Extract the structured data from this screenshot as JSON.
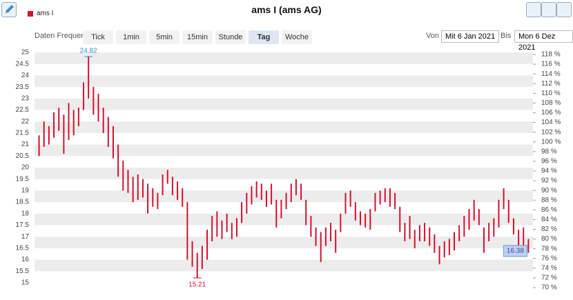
{
  "toolbar": {
    "frequency_label": "Daten Frequenz",
    "buttons": [
      "Tick",
      "1min",
      "5min",
      "15min",
      "Stunde",
      "Tag",
      "Woche"
    ],
    "from_label": "Von",
    "from_date": "Mit 6 Jan 2021",
    "to_label": "Bis",
    "to_date": "Mon 6 Dez 2021"
  },
  "chart_data": {
    "type": "ohlc",
    "title": "ams I (ams AG)",
    "series": [
      {
        "name": "ams I",
        "color": "#d40f2d",
        "high": [
          21.4,
          22.0,
          21.8,
          22.4,
          22.6,
          22.3,
          22.8,
          22.5,
          22.6,
          23.7,
          24.82,
          23.5,
          23.2,
          22.6,
          22.2,
          21.8,
          21.0,
          20.3,
          19.9,
          19.6,
          19.7,
          19.5,
          19.3,
          19.1,
          18.9,
          19.7,
          19.9,
          19.6,
          19.4,
          19.1,
          18.5,
          16.8,
          16.3,
          16.6,
          17.3,
          17.9,
          18.1,
          17.7,
          18.0,
          17.6,
          17.8,
          18.5,
          18.9,
          19.2,
          19.4,
          19.3,
          19.0,
          19.3,
          18.6,
          18.6,
          18.9,
          19.3,
          19.5,
          19.3,
          18.6,
          17.9,
          17.4,
          17.2,
          17.4,
          17.6,
          17.3,
          18.0,
          18.9,
          19.0,
          18.5,
          18.1,
          18.0,
          18.2,
          18.9,
          19.0,
          19.1,
          19.1,
          18.9,
          18.3,
          17.6,
          17.9,
          17.3,
          17.5,
          17.6,
          17.4,
          17.1,
          16.6,
          16.8,
          16.9,
          17.2,
          17.5,
          17.9,
          18.2,
          18.6,
          18.2,
          17.4,
          17.6,
          17.8,
          18.6,
          19.1,
          18.6,
          17.8,
          17.3,
          17.4,
          16.9
        ],
        "low": [
          20.5,
          20.9,
          21.0,
          21.3,
          21.6,
          20.6,
          21.2,
          21.4,
          21.8,
          22.5,
          23.0,
          22.3,
          22.0,
          21.5,
          20.9,
          20.4,
          19.6,
          19.0,
          18.9,
          18.5,
          18.6,
          18.7,
          18.0,
          18.3,
          18.2,
          18.8,
          19.3,
          18.8,
          18.6,
          18.3,
          16.0,
          15.7,
          15.21,
          15.6,
          16.0,
          16.8,
          17.0,
          16.9,
          17.2,
          16.9,
          17.0,
          17.6,
          18.0,
          18.4,
          18.7,
          18.6,
          18.3,
          18.4,
          17.4,
          17.8,
          18.2,
          18.5,
          18.8,
          18.6,
          17.5,
          17.0,
          16.6,
          15.9,
          16.6,
          16.8,
          16.3,
          17.2,
          18.0,
          18.3,
          17.7,
          17.5,
          17.4,
          17.3,
          18.1,
          18.4,
          18.5,
          18.3,
          18.2,
          17.2,
          16.8,
          16.9,
          16.5,
          16.8,
          16.8,
          16.6,
          16.3,
          15.8,
          16.1,
          16.2,
          16.4,
          16.8,
          17.0,
          17.3,
          17.7,
          17.5,
          16.3,
          16.8,
          17.0,
          17.4,
          18.2,
          17.6,
          17.1,
          16.5,
          16.4,
          16.3
        ]
      }
    ],
    "annotations": [
      24.82,
      15.21,
      16.38
    ],
    "ylim": [
      14.79,
      25.27
    ],
    "yticks": [
      15,
      15.5,
      16,
      16.5,
      17,
      17.5,
      18,
      18.5,
      19,
      19.5,
      20,
      20.5,
      21,
      21.5,
      22,
      22.5,
      23,
      23.5,
      24,
      24.5,
      25
    ],
    "y2lim": [
      70,
      119.7
    ],
    "y2ticks": [
      {
        "value": 70,
        "label": "70 %"
      },
      {
        "value": 72,
        "label": "72 %"
      },
      {
        "value": 74,
        "label": "74 %"
      },
      {
        "value": 76,
        "label": "76 %"
      },
      {
        "value": 78,
        "label": "78 %"
      },
      {
        "value": 80,
        "label": "80 %"
      },
      {
        "value": 82,
        "label": "82 %"
      },
      {
        "value": 84,
        "label": "84 %"
      },
      {
        "value": 86,
        "label": "86 %"
      },
      {
        "value": 88,
        "label": "88 %"
      },
      {
        "value": 90,
        "label": "90 %"
      },
      {
        "value": 92,
        "label": "92 %"
      },
      {
        "value": 94,
        "label": "94 %"
      },
      {
        "value": 96,
        "label": "96 %"
      },
      {
        "value": 98,
        "label": "98 %"
      },
      {
        "value": 100,
        "label": "100 %"
      },
      {
        "value": 102,
        "label": "102 %"
      },
      {
        "value": 104,
        "label": "104 %"
      },
      {
        "value": 106,
        "label": "106 %"
      },
      {
        "value": 108,
        "label": "108 %"
      },
      {
        "value": 110,
        "label": "110 %"
      },
      {
        "value": 112,
        "label": "112 %"
      },
      {
        "value": 114,
        "label": "114 %"
      },
      {
        "value": 116,
        "label": "116 %"
      },
      {
        "value": 118,
        "label": "118 %"
      }
    ],
    "grid": true
  }
}
